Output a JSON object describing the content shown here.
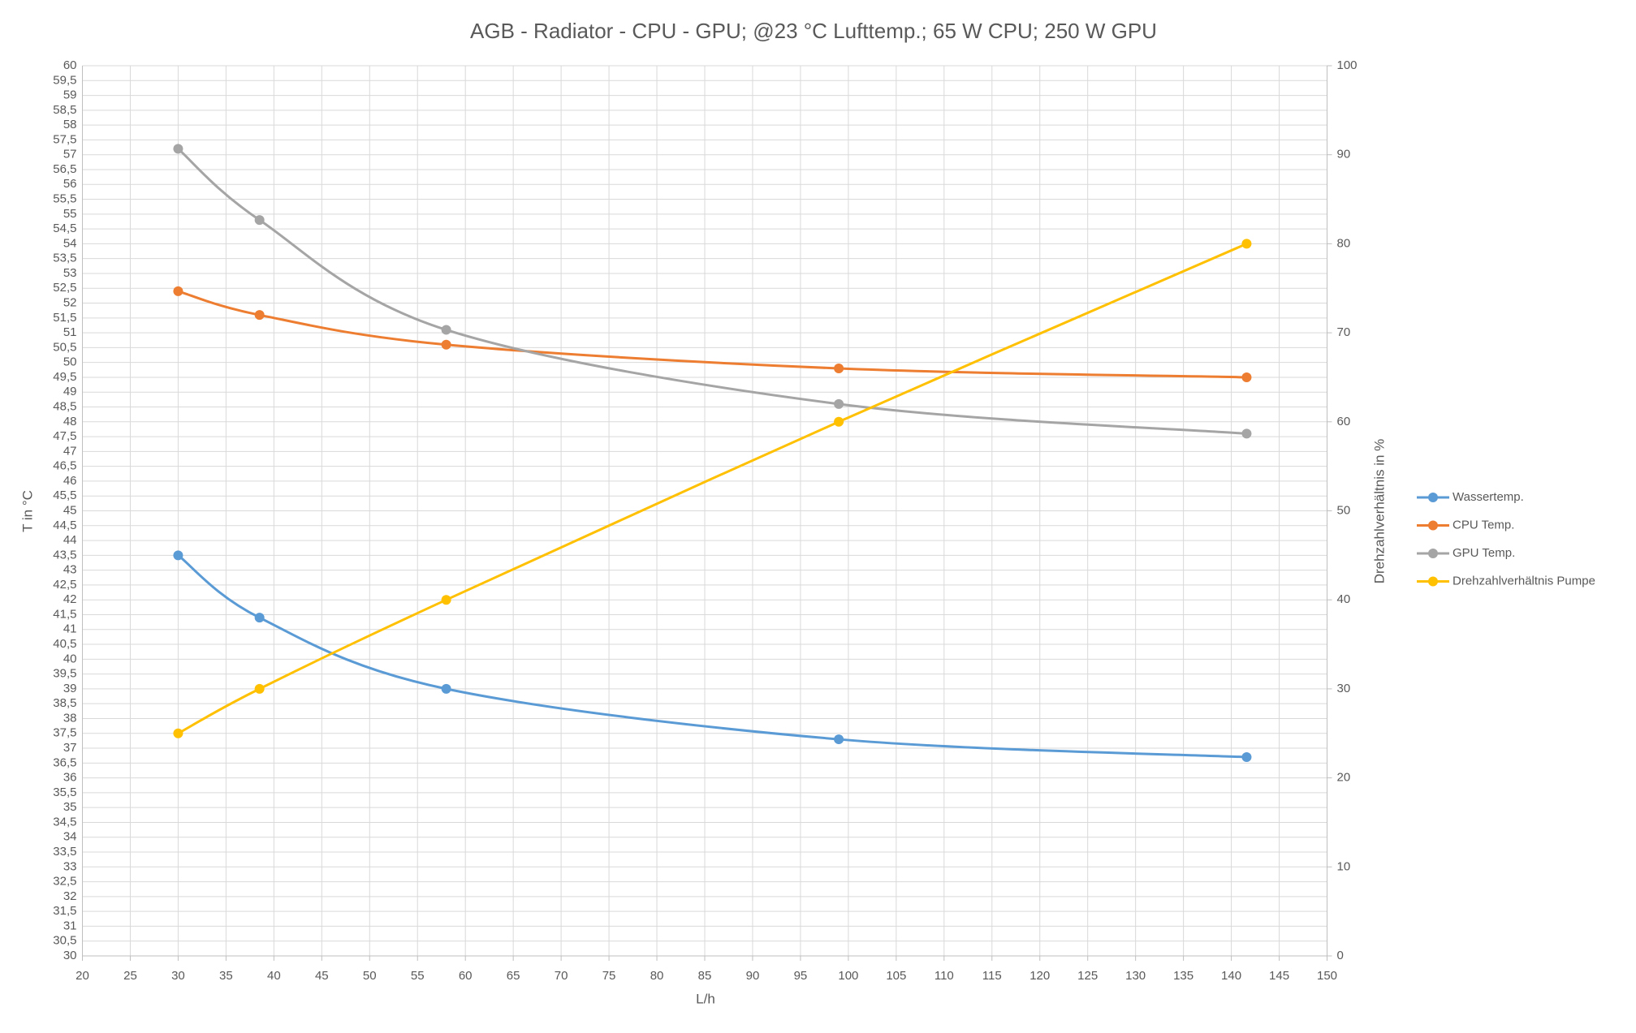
{
  "chart_data": {
    "type": "line",
    "title": "AGB - Radiator - CPU - GPU; @23 °C Lufttemp.; 65 W CPU; 250 W GPU",
    "x_label": "L/h",
    "y_label": "T in °C",
    "y2_label": "Drehzahlverhältnis in %",
    "x": [
      30,
      38.5,
      58,
      99,
      141.6
    ],
    "series": [
      {
        "name": "Wassertemp.",
        "color": "#5b9bd5",
        "values": [
          43.5,
          41.4,
          39.0,
          37.3,
          36.7
        ]
      },
      {
        "name": "CPU Temp.",
        "color": "#ed7d31",
        "values": [
          52.4,
          51.6,
          50.6,
          49.8,
          49.5
        ]
      },
      {
        "name": "GPU Temp.",
        "color": "#a5a5a5",
        "values": [
          57.2,
          54.8,
          51.1,
          48.6,
          47.6
        ]
      },
      {
        "name": "Drehzahlverhältnis Pumpe",
        "color": "#ffc000",
        "axis": "y2",
        "values": [
          25,
          30,
          40,
          60,
          80
        ]
      }
    ],
    "xlim": [
      20,
      150
    ],
    "xticks": [
      20,
      25,
      30,
      35,
      40,
      45,
      50,
      55,
      60,
      65,
      70,
      75,
      80,
      85,
      90,
      95,
      100,
      105,
      110,
      115,
      120,
      125,
      130,
      135,
      140,
      145,
      150
    ],
    "ylim": [
      30,
      60
    ],
    "yticks": [
      30,
      {
        "value": 30.5,
        "label": "30,5"
      },
      31,
      {
        "value": 31.5,
        "label": "31,5"
      },
      32,
      {
        "value": 32.5,
        "label": "32,5"
      },
      33,
      {
        "value": 33.5,
        "label": "33,5"
      },
      34,
      {
        "value": 34.5,
        "label": "34,5"
      },
      35,
      {
        "value": 35.5,
        "label": "35,5"
      },
      36,
      {
        "value": 36.5,
        "label": "36,5"
      },
      37,
      {
        "value": 37.5,
        "label": "37,5"
      },
      38,
      {
        "value": 38.5,
        "label": "38,5"
      },
      39,
      {
        "value": 39.5,
        "label": "39,5"
      },
      40,
      {
        "value": 40.5,
        "label": "40,5"
      },
      41,
      {
        "value": 41.5,
        "label": "41,5"
      },
      42,
      {
        "value": 42.5,
        "label": "42,5"
      },
      43,
      {
        "value": 43.5,
        "label": "43,5"
      },
      44,
      {
        "value": 44.5,
        "label": "44,5"
      },
      45,
      {
        "value": 45.5,
        "label": "45,5"
      },
      46,
      {
        "value": 46.5,
        "label": "46,5"
      },
      47,
      {
        "value": 47.5,
        "label": "47,5"
      },
      48,
      {
        "value": 48.5,
        "label": "48,5"
      },
      49,
      {
        "value": 49.5,
        "label": "49,5"
      },
      50,
      {
        "value": 50.5,
        "label": "50,5"
      },
      51,
      {
        "value": 51.5,
        "label": "51,5"
      },
      52,
      {
        "value": 52.5,
        "label": "52,5"
      },
      53,
      {
        "value": 53.5,
        "label": "53,5"
      },
      54,
      {
        "value": 54.5,
        "label": "54,5"
      },
      55,
      {
        "value": 55.5,
        "label": "55,5"
      },
      56,
      {
        "value": 56.5,
        "label": "56,5"
      },
      57,
      {
        "value": 57.5,
        "label": "57,5"
      },
      58,
      {
        "value": 58.5,
        "label": "58,5"
      },
      59,
      {
        "value": 59.5,
        "label": "59,5"
      },
      60
    ],
    "y2lim": [
      0,
      100
    ],
    "y2ticks": [
      0,
      10,
      20,
      30,
      40,
      50,
      60,
      70,
      80,
      90,
      100
    ],
    "grid": true,
    "smooth": true,
    "legend": "right"
  }
}
